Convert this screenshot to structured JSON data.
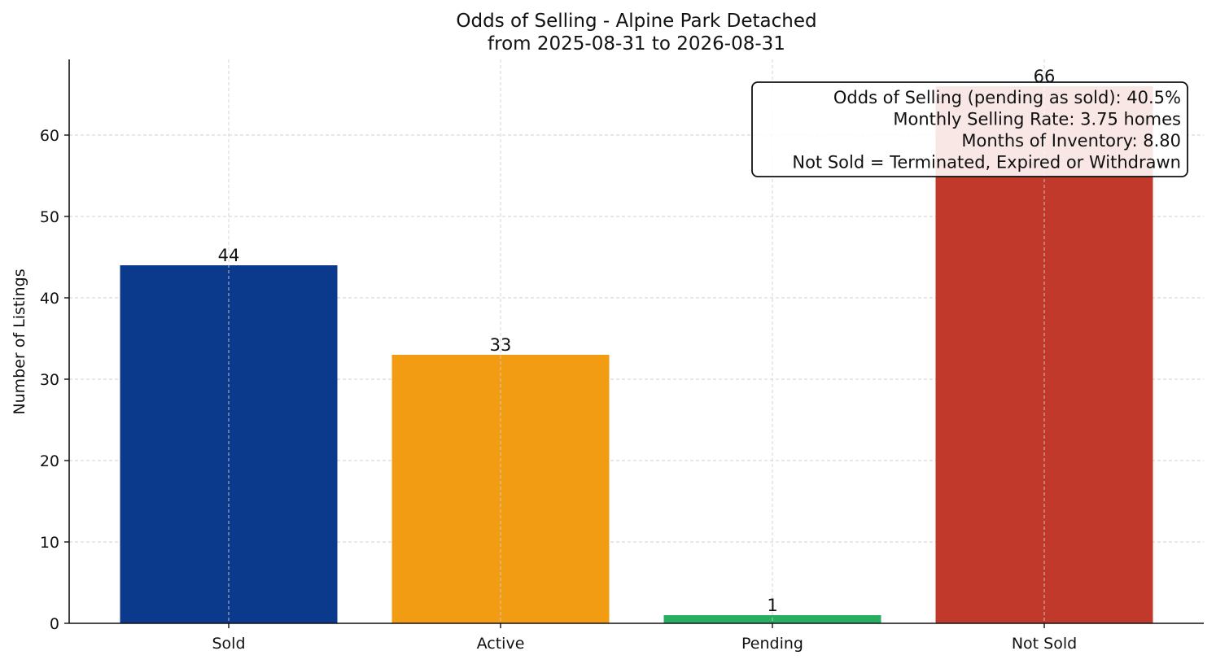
{
  "chart_data": {
    "type": "bar",
    "title": "Odds of Selling - Alpine Park Detached",
    "subtitle": "from 2025-08-31 to 2026-08-31",
    "xlabel": "",
    "ylabel": "Number of Listings",
    "categories": [
      "Sold",
      "Active",
      "Pending",
      "Not Sold"
    ],
    "values": [
      44,
      33,
      1,
      66
    ],
    "value_labels": [
      "44",
      "33",
      "1",
      "66"
    ],
    "colors": [
      "#0b3a8c",
      "#f29c13",
      "#27ae60",
      "#c0392b"
    ],
    "ylim": [
      0,
      69.3
    ],
    "yticks": [
      0,
      10,
      20,
      30,
      40,
      50,
      60
    ],
    "ytick_labels": [
      "0",
      "10",
      "20",
      "30",
      "40",
      "50",
      "60"
    ],
    "grid": true,
    "info_box_placement": "top-right",
    "info_box_lines": [
      "Odds of Selling (pending as sold): 40.5%",
      "Monthly Selling Rate: 3.75 homes",
      "Months of Inventory: 8.80",
      "Not Sold = Terminated, Expired or Withdrawn"
    ]
  }
}
